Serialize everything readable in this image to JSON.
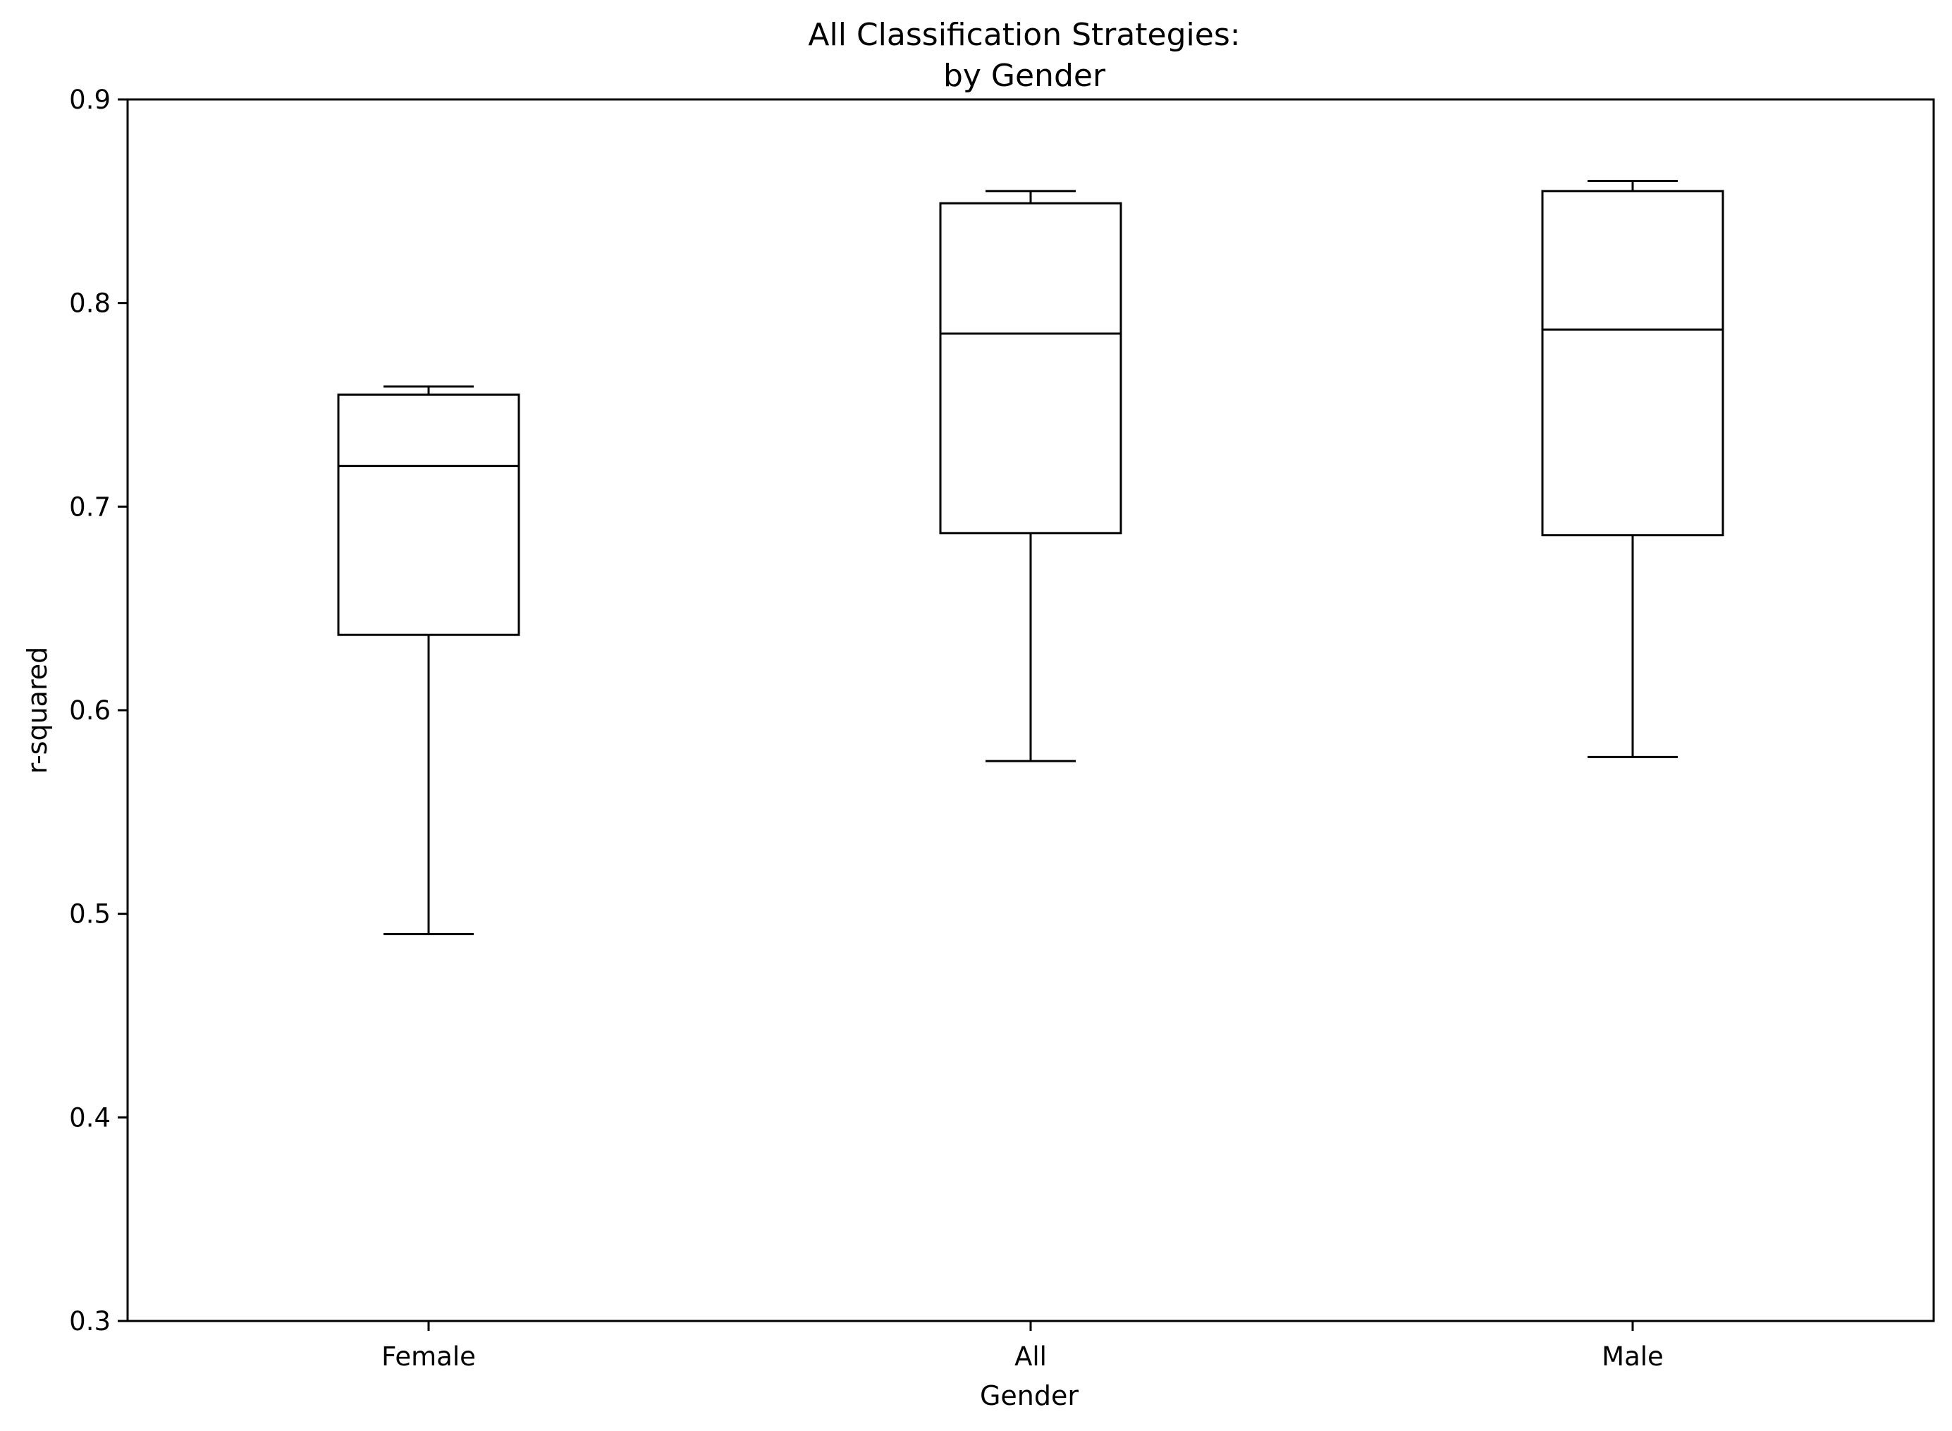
{
  "chart_data": {
    "type": "box",
    "title": "All Classification Strategies:\nby Gender",
    "title_lines": [
      "All Classification Strategies:",
      "by Gender"
    ],
    "xlabel": "Gender",
    "ylabel": "r-squared",
    "ylim": [
      0.3,
      0.9
    ],
    "yticks": [
      "0.3",
      "0.4",
      "0.5",
      "0.6",
      "0.7",
      "0.8",
      "0.9"
    ],
    "categories": [
      "Female",
      "All",
      "Male"
    ],
    "boxes": [
      {
        "category": "Female",
        "whisker_low": 0.49,
        "q1": 0.637,
        "median": 0.72,
        "q3": 0.755,
        "whisker_high": 0.759
      },
      {
        "category": "All",
        "whisker_low": 0.575,
        "q1": 0.687,
        "median": 0.785,
        "q3": 0.849,
        "whisker_high": 0.855
      },
      {
        "category": "Male",
        "whisker_low": 0.577,
        "q1": 0.686,
        "median": 0.787,
        "q3": 0.855,
        "whisker_high": 0.86
      }
    ],
    "grid": false,
    "line_color": "#000000"
  }
}
